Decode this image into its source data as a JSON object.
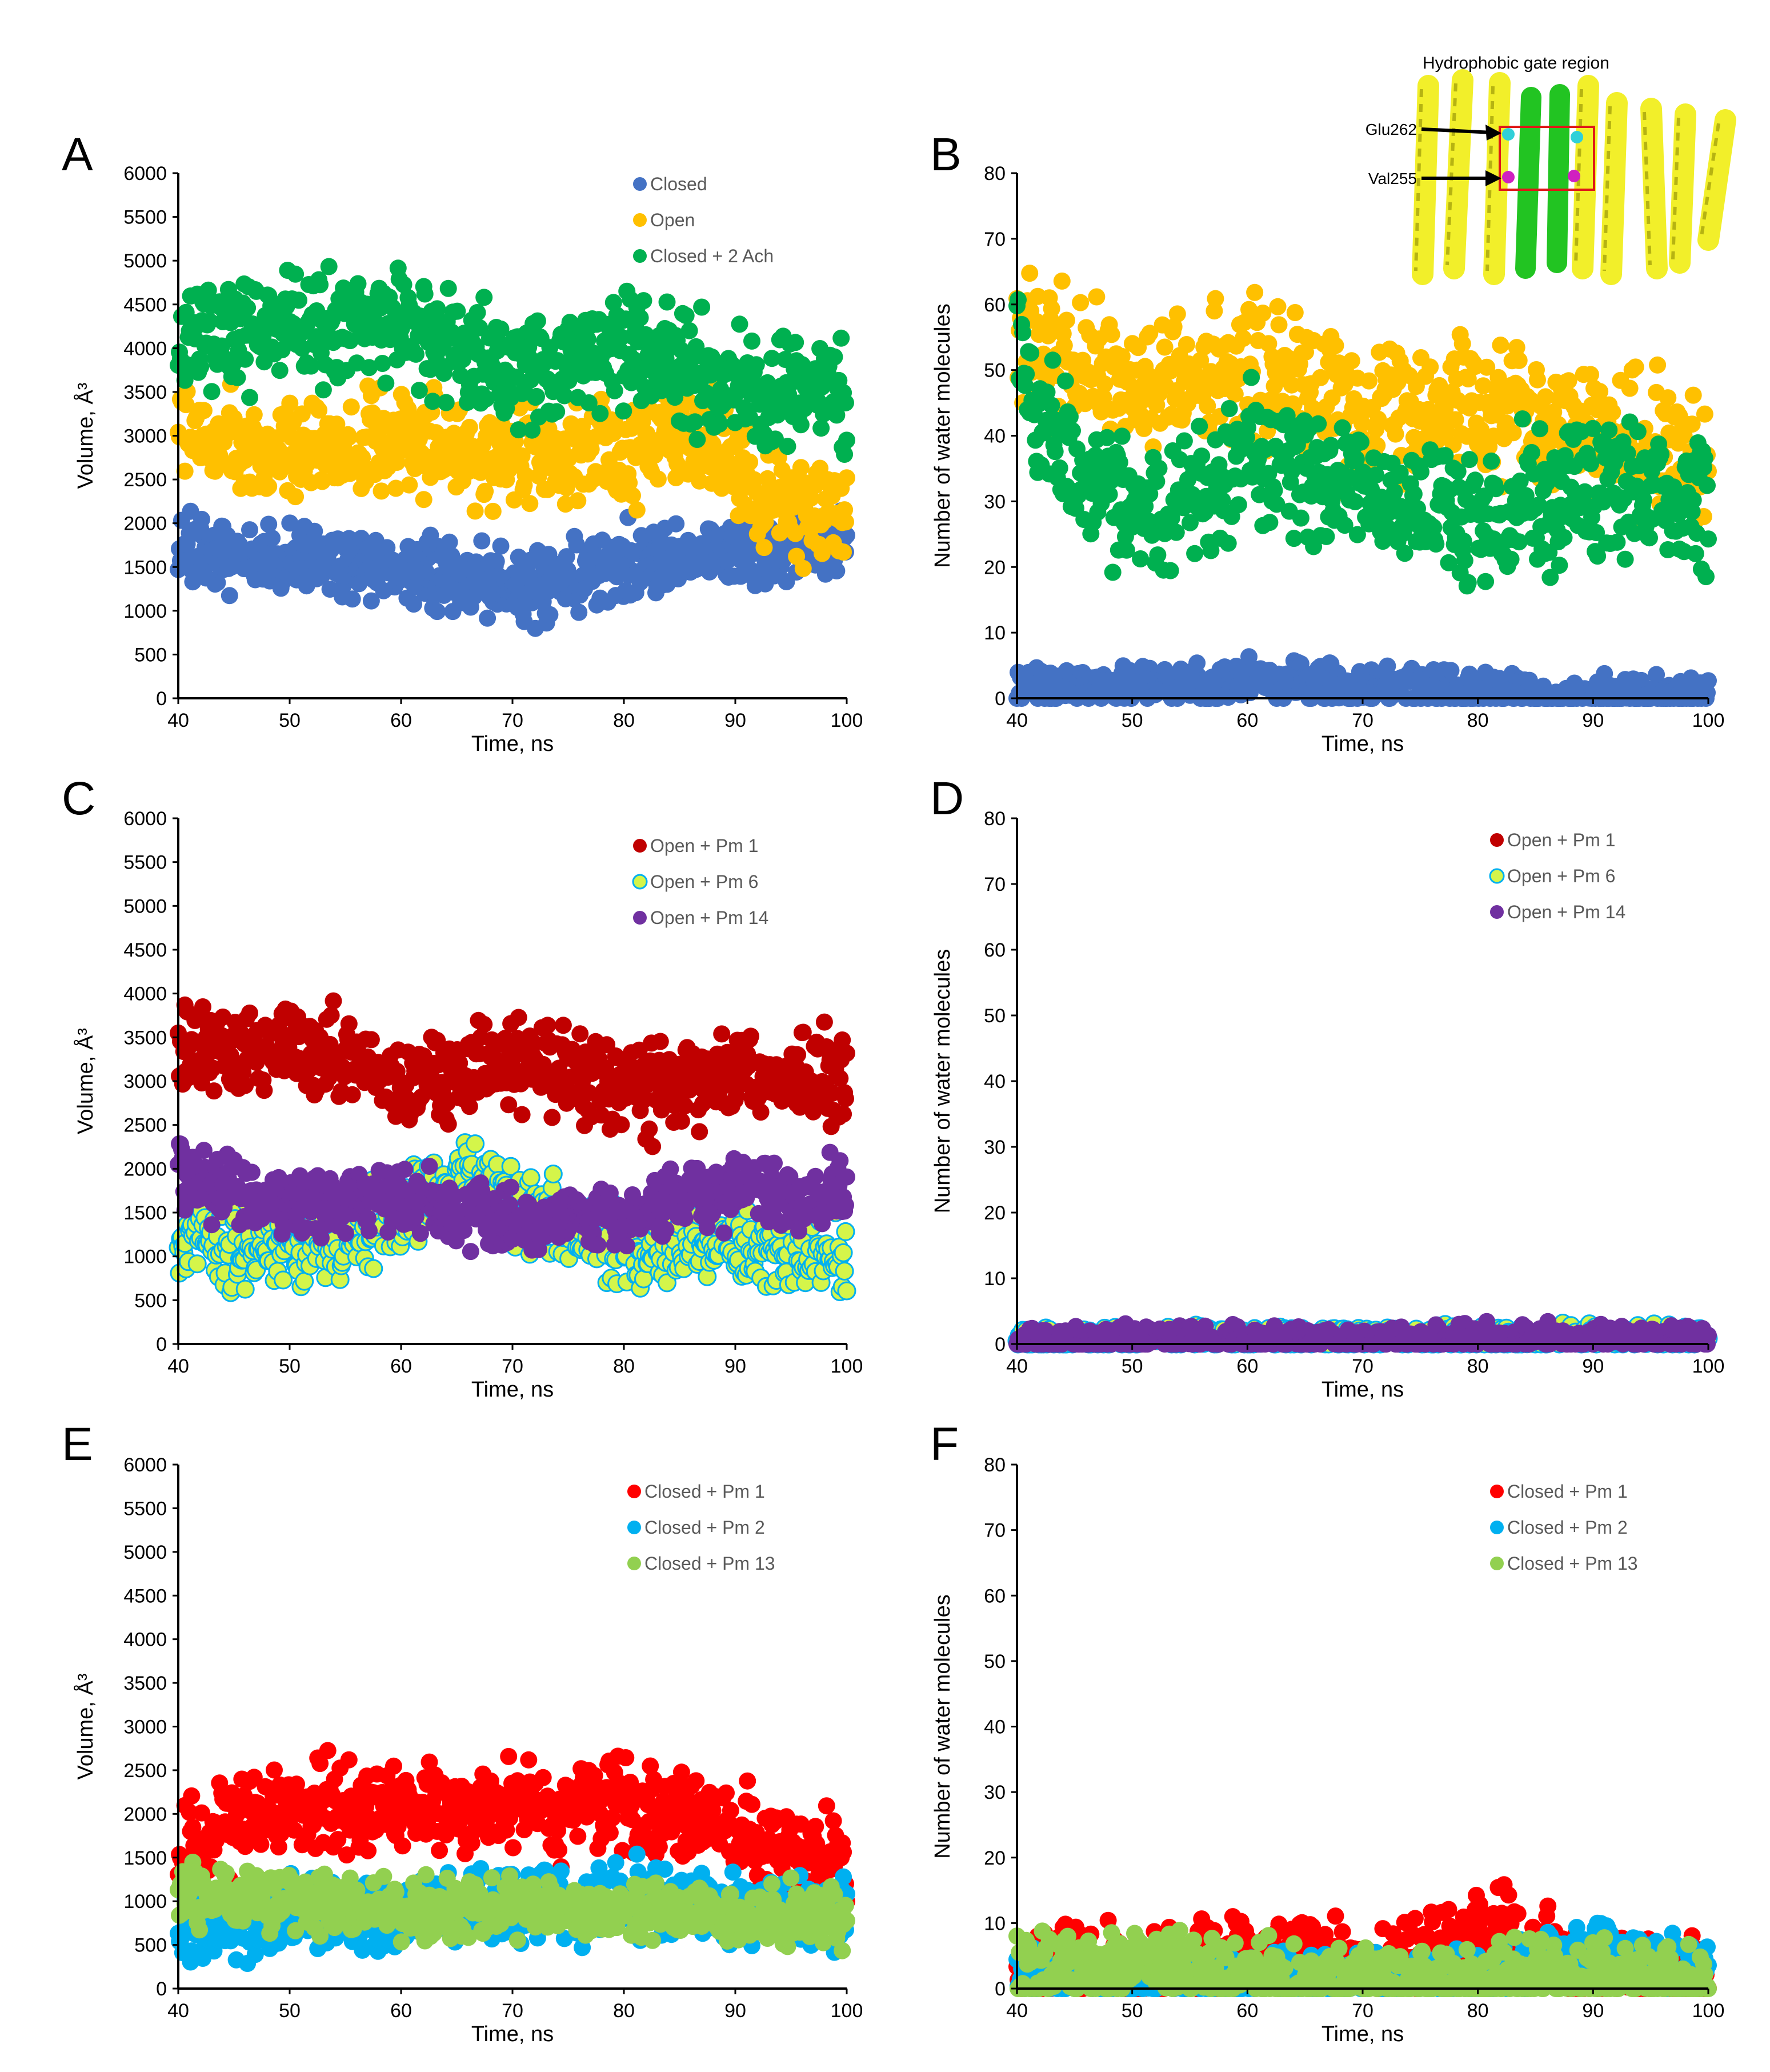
{
  "panels": [
    {
      "letter": "A",
      "type": "scatter",
      "ylabel": "Volume, Å³",
      "xlabel": "Time, ns",
      "xlim": [
        40,
        100
      ],
      "ylim": [
        0,
        6000
      ],
      "xticks": [
        40,
        50,
        60,
        70,
        80,
        90,
        100
      ],
      "yticks": [
        0,
        500,
        1000,
        1500,
        2000,
        2500,
        3000,
        3500,
        4000,
        4500,
        5000,
        5500,
        6000
      ],
      "legend": [
        "Closed",
        "Open",
        "Closed + 2 Ach"
      ],
      "series": [
        {
          "name": "Closed",
          "color": "#4472c4",
          "outline": "none",
          "mean": [
            [
              40,
              1600
            ],
            [
              50,
              1620
            ],
            [
              60,
              1420
            ],
            [
              70,
              1250
            ],
            [
              80,
              1500
            ],
            [
              90,
              1700
            ],
            [
              100,
              1750
            ]
          ],
          "spread": 200,
          "seed": 11
        },
        {
          "name": "Open",
          "color": "#ffc000",
          "outline": "none",
          "mean": [
            [
              40,
              3000
            ],
            [
              50,
              2800
            ],
            [
              60,
              2950
            ],
            [
              70,
              2800
            ],
            [
              80,
              2850
            ],
            [
              88,
              3000
            ],
            [
              92,
              2300
            ],
            [
              100,
              2100
            ]
          ],
          "spread": 280,
          "seed": 12
        },
        {
          "name": "Closed + 2 Ach",
          "color": "#00b050",
          "outline": "none",
          "mean": [
            [
              40,
              4150
            ],
            [
              50,
              4250
            ],
            [
              60,
              4300
            ],
            [
              70,
              3700
            ],
            [
              80,
              4050
            ],
            [
              85,
              3800
            ],
            [
              90,
              3500
            ],
            [
              100,
              3450
            ]
          ],
          "spread": 320,
          "seed": 13
        }
      ]
    },
    {
      "letter": "B",
      "type": "scatter",
      "ylabel": "Number of water molecules",
      "xlabel": "Time, ns",
      "xlim": [
        40,
        100
      ],
      "ylim": [
        0,
        80
      ],
      "xticks": [
        40,
        50,
        60,
        70,
        80,
        90,
        100
      ],
      "yticks": [
        0,
        10,
        20,
        30,
        40,
        50,
        60,
        70,
        80
      ],
      "legend": [],
      "series": [
        {
          "name": "Open",
          "color": "#ffc000",
          "outline": "none",
          "mean": [
            [
              40,
              55
            ],
            [
              50,
              48
            ],
            [
              60,
              50
            ],
            [
              70,
              44
            ],
            [
              80,
              45
            ],
            [
              90,
              42
            ],
            [
              100,
              35
            ]
          ],
          "spread": 5,
          "seed": 21
        },
        {
          "name": "Closed + 2 Ach",
          "color": "#00b050",
          "outline": "none",
          "mean": [
            [
              40,
              50
            ],
            [
              45,
              33
            ],
            [
              52,
              28
            ],
            [
              60,
              37
            ],
            [
              70,
              32
            ],
            [
              80,
              27
            ],
            [
              90,
              32
            ],
            [
              100,
              30
            ]
          ],
          "spread": 5,
          "seed": 22
        },
        {
          "name": "Closed",
          "color": "#4472c4",
          "outline": "none",
          "mean": [
            [
              40,
              1.5
            ],
            [
              60,
              2.5
            ],
            [
              75,
              1.5
            ],
            [
              85,
              0.5
            ],
            [
              100,
              0
            ]
          ],
          "spread": 1.5,
          "seed": 23,
          "floor": 0
        }
      ],
      "inset": {
        "title": "Hydrophobic gate region",
        "labels": [
          "Glu262",
          "Val255"
        ]
      }
    },
    {
      "letter": "C",
      "type": "scatter",
      "ylabel": "Volume, Å³",
      "xlabel": "Time, ns",
      "xlim": [
        40,
        100
      ],
      "ylim": [
        0,
        6000
      ],
      "xticks": [
        40,
        50,
        60,
        70,
        80,
        90,
        100
      ],
      "yticks": [
        0,
        500,
        1000,
        1500,
        2000,
        2500,
        3000,
        3500,
        4000,
        4500,
        5000,
        5500,
        6000
      ],
      "legend": [
        "Open + Pm 1",
        "Open + Pm 6",
        "Open + Pm 14"
      ],
      "series": [
        {
          "name": "Open + Pm 1",
          "color": "#c00000",
          "outline": "none",
          "mean": [
            [
              40,
              3300
            ],
            [
              50,
              3400
            ],
            [
              60,
              3000
            ],
            [
              70,
              3250
            ],
            [
              80,
              2950
            ],
            [
              90,
              3100
            ],
            [
              100,
              3000
            ]
          ],
          "spread": 250,
          "seed": 31
        },
        {
          "name": "Open + Pm 6",
          "color": "#d4f54a",
          "outline": "#00b0f0",
          "mean": [
            [
              40,
              1150
            ],
            [
              50,
              1050
            ],
            [
              60,
              1500
            ],
            [
              66,
              1900
            ],
            [
              70,
              1600
            ],
            [
              80,
              1100
            ],
            [
              90,
              1150
            ],
            [
              100,
              1000
            ]
          ],
          "spread": 220,
          "seed": 32
        },
        {
          "name": "Open + Pm 14",
          "color": "#7030a0",
          "outline": "none",
          "mean": [
            [
              40,
              1950
            ],
            [
              50,
              1550
            ],
            [
              60,
              1650
            ],
            [
              70,
              1400
            ],
            [
              80,
              1450
            ],
            [
              90,
              1800
            ],
            [
              100,
              1700
            ]
          ],
          "spread": 180,
          "seed": 33
        }
      ]
    },
    {
      "letter": "D",
      "type": "scatter",
      "ylabel": "Number of water molecules",
      "xlabel": "Time, ns",
      "xlim": [
        40,
        100
      ],
      "ylim": [
        0,
        80
      ],
      "xticks": [
        40,
        50,
        60,
        70,
        80,
        90,
        100
      ],
      "yticks": [
        0,
        10,
        20,
        30,
        40,
        50,
        60,
        70,
        80
      ],
      "legend": [
        "Open + Pm 1",
        "Open + Pm 6",
        "Open + Pm 14"
      ],
      "series": [
        {
          "name": "Open + Pm 1",
          "color": "#c00000",
          "outline": "none",
          "mean": [
            [
              40,
              1
            ],
            [
              100,
              1
            ]
          ],
          "spread": 0.3,
          "seed": 41,
          "floor": 0
        },
        {
          "name": "Open + Pm 6",
          "color": "#d4f54a",
          "outline": "#00b0f0",
          "mean": [
            [
              40,
              0.8
            ],
            [
              100,
              1.2
            ]
          ],
          "spread": 0.8,
          "seed": 42,
          "floor": 0
        },
        {
          "name": "Open + Pm 14",
          "color": "#7030a0",
          "outline": "none",
          "mean": [
            [
              40,
              0.6
            ],
            [
              100,
              0.8
            ]
          ],
          "spread": 1.0,
          "seed": 43,
          "floor": 0
        }
      ]
    },
    {
      "letter": "E",
      "type": "scatter",
      "ylabel": "Volume, Å³",
      "xlabel": "Time, ns",
      "xlim": [
        40,
        100
      ],
      "ylim": [
        0,
        6000
      ],
      "xticks": [
        40,
        50,
        60,
        70,
        80,
        90,
        100
      ],
      "yticks": [
        0,
        500,
        1000,
        1500,
        2000,
        2500,
        3000,
        3500,
        4000,
        4500,
        5000,
        5500,
        6000
      ],
      "legend": [
        "Closed + Pm 1",
        "Closed + Pm 2",
        "Closed + Pm 13"
      ],
      "series": [
        {
          "name": "Closed + Pm 1",
          "color": "#ff0000",
          "outline": "none",
          "mean": [
            [
              40,
              1650
            ],
            [
              50,
              2100
            ],
            [
              60,
              2050
            ],
            [
              70,
              2100
            ],
            [
              80,
              2100
            ],
            [
              88,
              1850
            ],
            [
              100,
              1500
            ]
          ],
          "spread": 250,
          "seed": 51
        },
        {
          "name": "Closed + Pm 2",
          "color": "#00b0f0",
          "outline": "none",
          "mean": [
            [
              40,
              750
            ],
            [
              50,
              800
            ],
            [
              60,
              850
            ],
            [
              70,
              950
            ],
            [
              80,
              1050
            ],
            [
              90,
              850
            ],
            [
              100,
              900
            ]
          ],
          "spread": 200,
          "seed": 52
        },
        {
          "name": "Closed + Pm 13",
          "color": "#92d050",
          "outline": "none",
          "mean": [
            [
              40,
              1100
            ],
            [
              50,
              1000
            ],
            [
              60,
              900
            ],
            [
              70,
              950
            ],
            [
              80,
              950
            ],
            [
              90,
              850
            ],
            [
              100,
              800
            ]
          ],
          "spread": 160,
          "seed": 53
        }
      ]
    },
    {
      "letter": "F",
      "type": "scatter",
      "ylabel": "Number of water molecules",
      "xlabel": "Time, ns",
      "xlim": [
        40,
        100
      ],
      "ylim": [
        0,
        80
      ],
      "xticks": [
        40,
        50,
        60,
        70,
        80,
        90,
        100
      ],
      "yticks": [
        0,
        10,
        20,
        30,
        40,
        50,
        60,
        70,
        80
      ],
      "legend": [
        "Closed + Pm 1",
        "Closed + Pm 2",
        "Closed + Pm 13"
      ],
      "series": [
        {
          "name": "Closed + Pm 1",
          "color": "#ff0000",
          "outline": "none",
          "mean": [
            [
              40,
              2
            ],
            [
              60,
              5
            ],
            [
              70,
              3
            ],
            [
              82,
              9
            ],
            [
              90,
              2
            ],
            [
              100,
              2
            ]
          ],
          "spread": 3,
          "seed": 61,
          "floor": 0
        },
        {
          "name": "Closed + Pm 2",
          "color": "#00b0f0",
          "outline": "none",
          "mean": [
            [
              40,
              2
            ],
            [
              60,
              1
            ],
            [
              80,
              1
            ],
            [
              90,
              6
            ],
            [
              100,
              3
            ]
          ],
          "spread": 2,
          "seed": 62,
          "floor": 0
        },
        {
          "name": "Closed + Pm 13",
          "color": "#92d050",
          "outline": "none",
          "mean": [
            [
              40,
              3
            ],
            [
              50,
              3
            ],
            [
              60,
              2
            ],
            [
              70,
              1
            ],
            [
              80,
              1
            ],
            [
              90,
              2
            ],
            [
              100,
              1
            ]
          ],
          "spread": 2.5,
          "seed": 63,
          "floor": 0
        }
      ]
    }
  ]
}
